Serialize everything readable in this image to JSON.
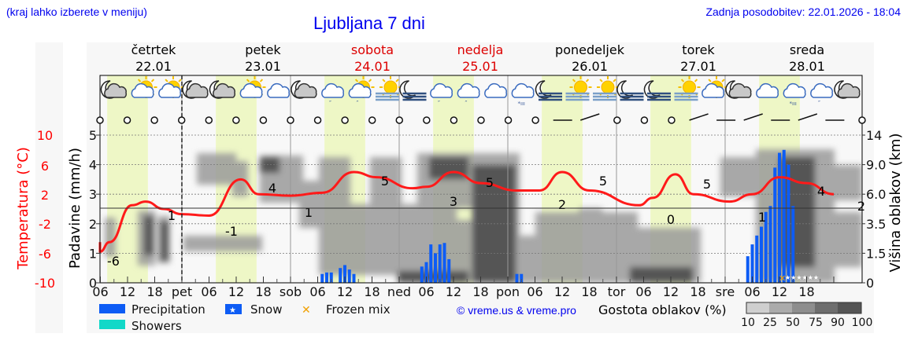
{
  "header": {
    "left_note": "(kraj lahko izberete v meniju)",
    "title": "Ljubljana 7 dni",
    "updated": "Zadnja posodobitev: 22.01.2026 - 18:04"
  },
  "days": [
    {
      "name": "četrtek",
      "date": "22.01",
      "color": "#000000"
    },
    {
      "name": "petek",
      "date": "23.01",
      "color": "#000000"
    },
    {
      "name": "sobota",
      "date": "24.01",
      "color": "#dd0000"
    },
    {
      "name": "nedelja",
      "date": "25.01",
      "color": "#dd0000"
    },
    {
      "name": "ponedeljek",
      "date": "26.01",
      "color": "#000000"
    },
    {
      "name": "torek",
      "date": "27.01",
      "color": "#000000"
    },
    {
      "name": "sreda",
      "date": "28.01",
      "color": "#000000"
    }
  ],
  "weather_icons": [
    "moon-cloud",
    "sun-cloud",
    "sun-cloud",
    "moon-cloud",
    "moon-cloud",
    "sun-cloud",
    "cloud",
    "moon-cloud",
    "rain-cloud",
    "sun-cloud-rain",
    "sun-fog",
    "moon-fog",
    "rain-cloud",
    "rain-cloud",
    "cloud",
    "snow-cloud",
    "moon-fog",
    "sun-fog",
    "sun-fog",
    "moon-fog",
    "moon-fog",
    "sun-fog",
    "sun-cloud",
    "moon-cloud",
    "cloud",
    "snow-cloud",
    "rain-cloud",
    "moon-cloud"
  ],
  "axes": {
    "temp_label": "Temperatura (°C)",
    "temp_ticks": [
      "10",
      "6",
      "2",
      "-2",
      "-6",
      "-10"
    ],
    "precip_label": "Padavine (mm/h)",
    "precip_ticks": [
      "5",
      "4",
      "3",
      "2",
      "1",
      "0"
    ],
    "cloud_label": "Višina oblakov (km)",
    "cloud_ticks": [
      "14",
      "9.0",
      "6.0",
      "3.5",
      "1.5",
      "0"
    ],
    "x_ticks": [
      "06",
      "12",
      "18",
      "pet",
      "06",
      "12",
      "18",
      "sob",
      "06",
      "12",
      "18",
      "ned",
      "06",
      "12",
      "18",
      "pon",
      "06",
      "12",
      "18",
      "tor",
      "06",
      "12",
      "18",
      "sre",
      "06",
      "12",
      "18"
    ]
  },
  "legend": {
    "precipitation": "Precipitation",
    "snow": "Snow",
    "frozen_mix": "Frozen mix",
    "showers": "Showers",
    "cloud_density_label": "Gostota oblakov (%)",
    "cloud_density_ticks": [
      "10",
      "25",
      "50",
      "75",
      "90",
      "100"
    ],
    "credit": "© vreme.us & vreme.pro",
    "colors": {
      "precipitation": "#0d5cf5",
      "showers": "#12d8c8",
      "frozen_mix": "#f0a000",
      "temperature": "#ff0000",
      "daylight": "#f0f8c8"
    }
  },
  "chart_data": {
    "type": "line",
    "title": "Ljubljana 7 dni",
    "xlabel": "",
    "ylabel": "Temperatura (°C)",
    "ylim": [
      -10,
      10
    ],
    "temperature_labels": [
      {
        "x": "22.01 03",
        "value": -6
      },
      {
        "x": "22.01 16",
        "value": 1
      },
      {
        "x": "23.01 04",
        "value": -1
      },
      {
        "x": "23.01 14",
        "value": 4
      },
      {
        "x": "24.01 00",
        "value": 1
      },
      {
        "x": "24.01 15",
        "value": 5
      },
      {
        "x": "25.01 06",
        "value": 3
      },
      {
        "x": "25.01 14",
        "value": 5
      },
      {
        "x": "26.01 07",
        "value": 2
      },
      {
        "x": "26.01 14",
        "value": 5
      },
      {
        "x": "27.01 07",
        "value": 0
      },
      {
        "x": "27.01 14",
        "value": 5
      },
      {
        "x": "28.01 03",
        "value": 1
      },
      {
        "x": "28.01 14",
        "value": 4
      },
      {
        "x": "29.01 00",
        "value": 2
      }
    ],
    "series": [
      {
        "name": "Precipitation (mm/h)",
        "type": "bar",
        "points": [
          {
            "x": "24.01 07",
            "value": 0.3
          },
          {
            "x": "24.01 08",
            "value": 0.35
          },
          {
            "x": "24.01 09",
            "value": 0.35
          },
          {
            "x": "24.01 11",
            "value": 0.5
          },
          {
            "x": "24.01 12",
            "value": 0.6
          },
          {
            "x": "24.01 13",
            "value": 0.45
          },
          {
            "x": "24.01 14",
            "value": 0.3
          },
          {
            "x": "25.01 05",
            "value": 0.55
          },
          {
            "x": "25.01 06",
            "value": 0.7
          },
          {
            "x": "25.01 07",
            "value": 1.3
          },
          {
            "x": "25.01 08",
            "value": 1.0
          },
          {
            "x": "25.01 09",
            "value": 1.3
          },
          {
            "x": "25.01 10",
            "value": 1.35
          },
          {
            "x": "25.01 11",
            "value": 0.8
          },
          {
            "x": "26.01 02",
            "value": 0.3
          },
          {
            "x": "26.01 03",
            "value": 0.3
          },
          {
            "x": "28.01 05",
            "value": 0.9
          },
          {
            "x": "28.01 06",
            "value": 1.3
          },
          {
            "x": "28.01 07",
            "value": 1.6
          },
          {
            "x": "28.01 08",
            "value": 1.9
          },
          {
            "x": "28.01 09",
            "value": 2.4
          },
          {
            "x": "28.01 10",
            "value": 2.6
          },
          {
            "x": "28.01 11",
            "value": 3.9
          },
          {
            "x": "28.01 12",
            "value": 4.4
          },
          {
            "x": "28.01 13",
            "value": 4.5
          },
          {
            "x": "28.01 14",
            "value": 4.0
          },
          {
            "x": "28.01 15",
            "value": 2.6
          }
        ]
      },
      {
        "name": "Temperature (°C)",
        "type": "line",
        "points": [
          {
            "x": "22.01 00",
            "value": -4.5
          },
          {
            "x": "22.01 03",
            "value": -5.8
          },
          {
            "x": "22.01 08",
            "value": -4.5
          },
          {
            "x": "22.01 13",
            "value": 0.5
          },
          {
            "x": "22.01 16",
            "value": 1.0
          },
          {
            "x": "22.01 20",
            "value": 0.0
          },
          {
            "x": "23.01 00",
            "value": -0.7
          },
          {
            "x": "23.01 06",
            "value": -0.9
          },
          {
            "x": "23.01 13",
            "value": 4.0
          },
          {
            "x": "23.01 17",
            "value": 2.0
          },
          {
            "x": "24.01 00",
            "value": 1.8
          },
          {
            "x": "24.01 07",
            "value": 2.2
          },
          {
            "x": "24.01 14",
            "value": 5.0
          },
          {
            "x": "24.01 19",
            "value": 4.3
          },
          {
            "x": "25.01 03",
            "value": 2.8
          },
          {
            "x": "25.01 06",
            "value": 3.0
          },
          {
            "x": "25.01 12",
            "value": 5.0
          },
          {
            "x": "25.01 18",
            "value": 3.5
          },
          {
            "x": "26.01 02",
            "value": 2.5
          },
          {
            "x": "26.01 07",
            "value": 2.5
          },
          {
            "x": "26.01 12",
            "value": 5.0
          },
          {
            "x": "26.01 18",
            "value": 2.5
          },
          {
            "x": "27.01 05",
            "value": 0.5
          },
          {
            "x": "27.01 08",
            "value": 1.5
          },
          {
            "x": "27.01 13",
            "value": 4.7
          },
          {
            "x": "27.01 17",
            "value": 2.0
          },
          {
            "x": "28.01 01",
            "value": 1.0
          },
          {
            "x": "28.01 06",
            "value": 2.0
          },
          {
            "x": "28.01 12",
            "value": 4.3
          },
          {
            "x": "28.01 18",
            "value": 3.5
          },
          {
            "x": "29.01 00",
            "value": 2.0
          }
        ]
      }
    ],
    "snow_periods": [
      "28.01 03-08"
    ],
    "frozen_mix_points": [
      "28.01 03"
    ],
    "legend_position": "bottom",
    "grid": true
  }
}
